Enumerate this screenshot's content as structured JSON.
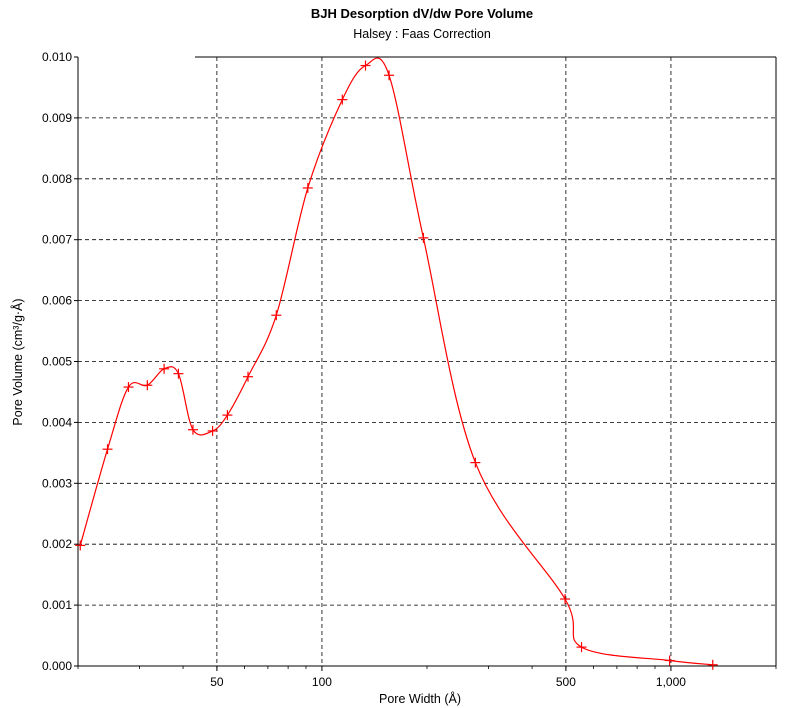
{
  "chart_data": {
    "type": "line",
    "title": "BJH Desorption dV/dw Pore Volume",
    "subtitle": "Halsey : Faas Correction",
    "xlabel": "Pore Width (Å)",
    "ylabel": "Pore Volume (cm³/g·Å)",
    "x_scale": "log",
    "xlim": [
      20,
      2000
    ],
    "ylim": [
      0,
      0.01
    ],
    "grid": true,
    "x_ticks": [
      {
        "value": 50,
        "label": "50"
      },
      {
        "value": 100,
        "label": "100"
      },
      {
        "value": 500,
        "label": "500"
      },
      {
        "value": 1000,
        "label": "1,000"
      }
    ],
    "y_ticks": [
      {
        "value": 0.0,
        "label": "0.000"
      },
      {
        "value": 0.001,
        "label": "0.001"
      },
      {
        "value": 0.002,
        "label": "0.002"
      },
      {
        "value": 0.003,
        "label": "0.003"
      },
      {
        "value": 0.004,
        "label": "0.004"
      },
      {
        "value": 0.005,
        "label": "0.005"
      },
      {
        "value": 0.006,
        "label": "0.006"
      },
      {
        "value": 0.007,
        "label": "0.007"
      },
      {
        "value": 0.008,
        "label": "0.008"
      },
      {
        "value": 0.009,
        "label": "0.009"
      },
      {
        "value": 0.01,
        "label": "0.010"
      }
    ],
    "series": [
      {
        "color": "#ff0000",
        "x": [
          20.3,
          24.3,
          27.9,
          31.6,
          35.3,
          38.8,
          42.7,
          48.6,
          53.6,
          61.4,
          74.0,
          91.1,
          114.4,
          133.3,
          155.7,
          195.3,
          275.2,
          497.3,
          554.4,
          991.5,
          1317.9
        ],
        "y": [
          0.00198,
          0.00356,
          0.00458,
          0.00461,
          0.00488,
          0.0048,
          0.00388,
          0.00386,
          0.00412,
          0.00475,
          0.00576,
          0.00785,
          0.0093,
          0.00986,
          0.0097,
          0.00703,
          0.00334,
          0.0011,
          0.00031,
          9e-05,
          2e-05
        ]
      }
    ]
  }
}
